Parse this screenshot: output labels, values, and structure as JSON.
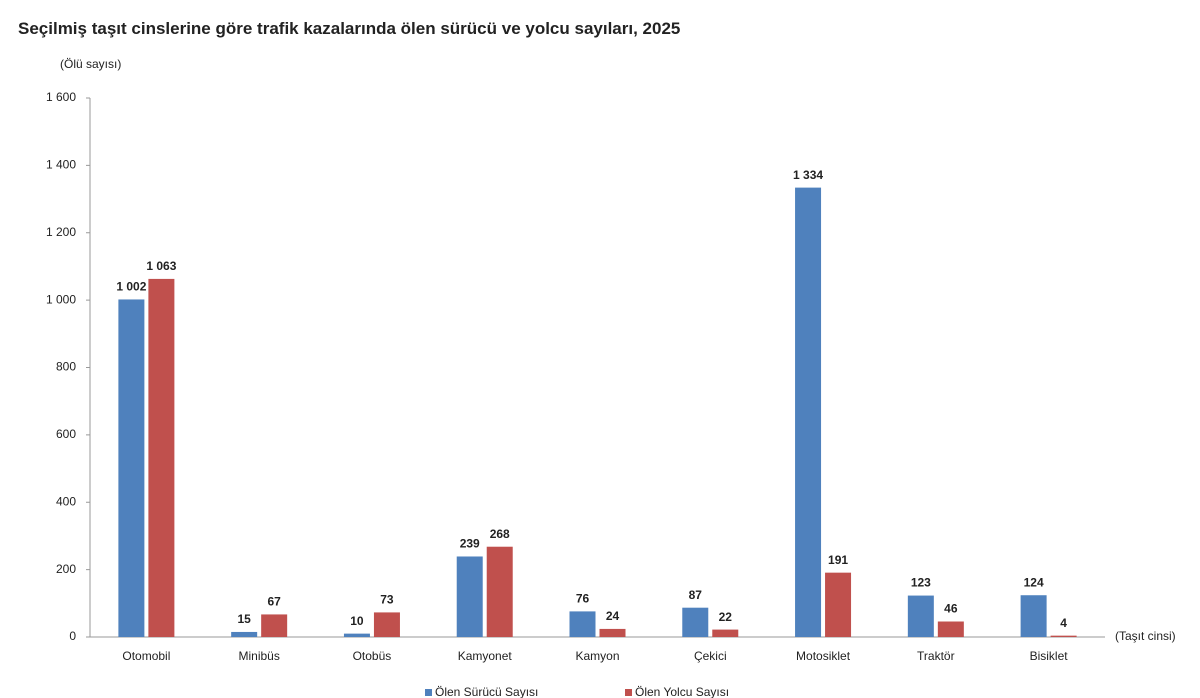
{
  "chart_data": {
    "type": "bar",
    "title": "Seçilmiş taşıt cinslerine göre trafik kazalarında ölen sürücü ve yolcu sayıları, 2025",
    "y_label": "(Ölü sayısı)",
    "x_label": "(Taşıt cinsi)",
    "categories": [
      "Otomobil",
      "Minibüs",
      "Otobüs",
      "Kamyonet",
      "Kamyon",
      "Çekici",
      "Motosiklet",
      "Traktör",
      "Bisiklet"
    ],
    "series": [
      {
        "name": "Ölen Sürücü Sayısı",
        "color": "#4f81bd",
        "values": [
          1002,
          15,
          10,
          239,
          76,
          87,
          1334,
          123,
          124
        ],
        "value_labels": [
          "1 002",
          "15",
          "10",
          "239",
          "76",
          "87",
          "1 334",
          "123",
          "124"
        ]
      },
      {
        "name": "Ölen Yolcu Sayısı",
        "color": "#c0504d",
        "values": [
          1063,
          67,
          73,
          268,
          24,
          22,
          191,
          46,
          4
        ],
        "value_labels": [
          "1 063",
          "67",
          "73",
          "268",
          "24",
          "22",
          "191",
          "46",
          "4"
        ]
      }
    ],
    "ylim": [
      0,
      1600
    ],
    "yticks": [
      0,
      200,
      400,
      600,
      800,
      {
        "value": 1000,
        "label": "1 000"
      },
      {
        "value": 1200,
        "label": "1 200"
      },
      {
        "value": 1400,
        "label": "1 400"
      },
      {
        "value": 1600,
        "label": "1 600"
      }
    ],
    "grid": false
  }
}
